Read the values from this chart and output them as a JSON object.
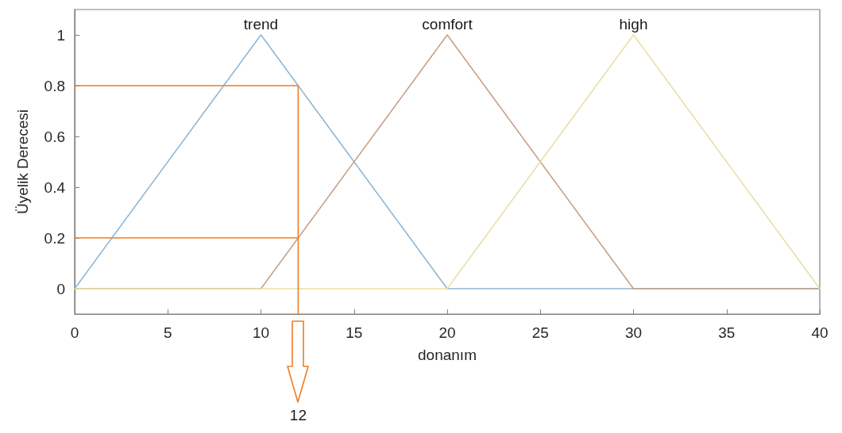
{
  "chart_data": {
    "type": "line",
    "xlabel": "donanım",
    "ylabel": "Üyelik Derecesi",
    "xlim": [
      0,
      40
    ],
    "xticks": [
      0,
      5,
      10,
      15,
      20,
      25,
      30,
      35,
      40
    ],
    "ylim": [
      -0.1,
      1.1
    ],
    "yticks": [
      0,
      0.2,
      0.4,
      0.6,
      0.8,
      1
    ],
    "grid": false,
    "legend": false,
    "marker": "none",
    "line_style": "solid",
    "series": [
      {
        "name": "trend",
        "color": "#8fb8d4",
        "x": [
          0,
          10,
          20,
          40
        ],
        "values": [
          0,
          1,
          0,
          0
        ]
      },
      {
        "name": "comfort",
        "color": "#c9a088",
        "x": [
          0,
          10,
          20,
          30,
          40
        ],
        "values": [
          0,
          0,
          1,
          0,
          0
        ]
      },
      {
        "name": "high",
        "color": "#e9dfa6",
        "x": [
          0,
          20,
          30,
          40
        ],
        "values": [
          0,
          0,
          1,
          0
        ]
      },
      {
        "color": "#ee7d26",
        "x": [
          0,
          12,
          12
        ],
        "values": [
          0.8,
          0.8,
          -0.1
        ]
      },
      {
        "color": "#ee7d26",
        "x": [
          0,
          12
        ],
        "values": [
          0.2,
          0.2
        ]
      }
    ],
    "annotations": [
      "12"
    ]
  }
}
